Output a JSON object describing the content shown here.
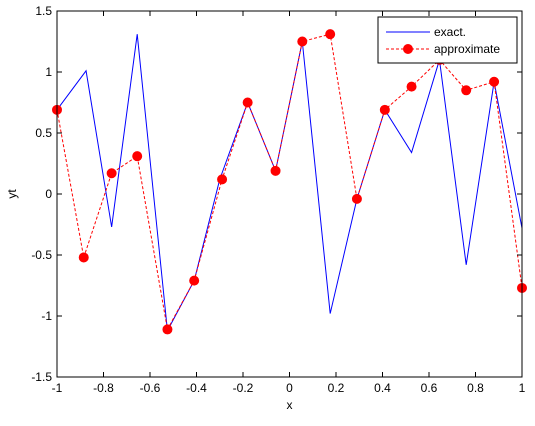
{
  "chart_data": {
    "type": "line",
    "title": "",
    "xlabel": "x",
    "ylabel": "yt",
    "xlim": [
      -1,
      1
    ],
    "ylim": [
      -1.5,
      1.5
    ],
    "x_ticks": [
      -1,
      -0.8,
      -0.6,
      -0.4,
      -0.2,
      0,
      0.2,
      0.4,
      0.6,
      0.8,
      1
    ],
    "y_ticks": [
      -1.5,
      -1,
      -0.5,
      0,
      0.5,
      1,
      1.5
    ],
    "x_tick_labels": [
      "-1",
      "-0.8",
      "-0.6",
      "-0.4",
      "-0.2",
      "0",
      "0.2",
      "0.4",
      "0.6",
      "0.8",
      "1"
    ],
    "y_tick_labels": [
      "-1.5",
      "-1",
      "-0.5",
      "0",
      "0.5",
      "1",
      "1.5"
    ],
    "grid": false,
    "legend_position": "top-right",
    "series": [
      {
        "name": "exact.",
        "color": "#0000ff",
        "line_style": "solid",
        "marker": "none",
        "x": [
          -1,
          -0.875,
          -0.765,
          -0.655,
          -0.525,
          -0.41,
          -0.3,
          -0.18,
          -0.06,
          0.055,
          0.175,
          0.29,
          0.41,
          0.525,
          0.645,
          0.76,
          0.88,
          1
        ],
        "y": [
          0.69,
          1.01,
          -0.27,
          1.31,
          -1.12,
          -0.71,
          0.12,
          0.75,
          0.19,
          1.25,
          -0.98,
          -0.04,
          0.69,
          0.34,
          1.1,
          -0.58,
          0.92,
          -0.28
        ]
      },
      {
        "name": "approximate",
        "color": "#ff0000",
        "line_style": "dashed",
        "marker": "filled-circle",
        "x": [
          -1,
          -0.885,
          -0.765,
          -0.655,
          -0.525,
          -0.41,
          -0.29,
          -0.18,
          -0.06,
          0.055,
          0.175,
          0.29,
          0.41,
          0.525,
          0.645,
          0.76,
          0.88,
          1
        ],
        "y": [
          0.69,
          -0.52,
          0.17,
          0.31,
          -1.11,
          -0.71,
          0.12,
          0.75,
          0.19,
          1.25,
          1.31,
          -0.04,
          0.69,
          0.88,
          1.1,
          0.85,
          0.92,
          -0.77
        ]
      }
    ]
  }
}
